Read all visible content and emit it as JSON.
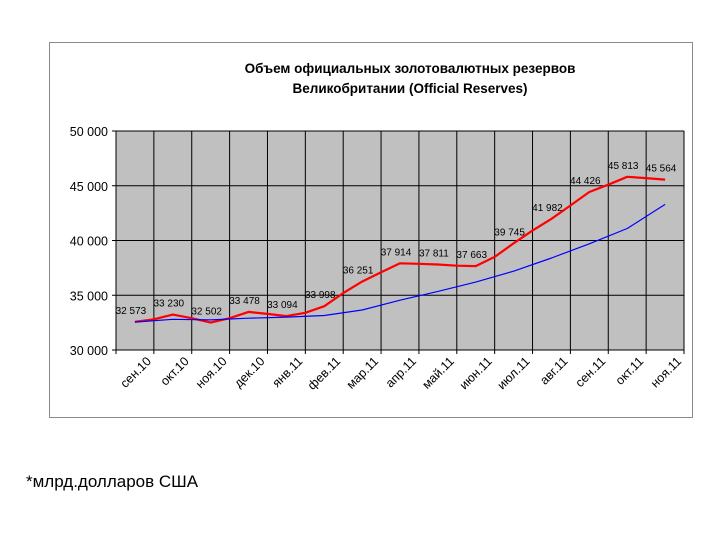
{
  "footnote": "*млрд.долларов США",
  "chart_data": {
    "type": "line",
    "title": [
      "Объем официальных золотовалютных резервов",
      "Великобритании (Official Reserves)"
    ],
    "categories": [
      "сен.10",
      "окт.10",
      "ноя.10",
      "дек.10",
      "янв.11",
      "фев.11",
      "мар.11",
      "апр.11",
      "май.11",
      "июн.11",
      "июл.11",
      "авг.11",
      "сен.11",
      "окт.11",
      "ноя.11"
    ],
    "ylim": [
      30000,
      50000
    ],
    "yticks": [
      "30 000",
      "35 000",
      "40 000",
      "45 000",
      "50 000"
    ],
    "ytick_values": [
      30000,
      35000,
      40000,
      45000,
      50000
    ],
    "grid": true,
    "plot_background": "#c0c0c0",
    "series": [
      {
        "color": "#ff0000",
        "x": [
          0,
          0.5,
          1,
          1.5,
          2,
          2.5,
          3,
          3.5,
          4,
          4.5,
          5,
          5.5,
          6,
          6.5,
          7,
          7.5,
          8,
          8.5,
          9,
          9.5,
          10,
          10.5,
          11,
          11.5,
          12,
          12.5,
          13,
          13.5,
          14
        ],
        "values": [
          32573,
          32800,
          33230,
          32900,
          32502,
          32900,
          33478,
          33300,
          33094,
          33400,
          33998,
          35200,
          36251,
          37100,
          37914,
          37870,
          37811,
          37700,
          37663,
          38500,
          39745,
          40900,
          41982,
          43200,
          44426,
          45100,
          45813,
          45700,
          45564
        ],
        "labels": [
          {
            "x": 0,
            "value": 32573,
            "text": "32 573"
          },
          {
            "x": 1,
            "value": 33230,
            "text": "33 230"
          },
          {
            "x": 2,
            "value": 32502,
            "text": "32 502"
          },
          {
            "x": 3,
            "value": 33478,
            "text": "33 478"
          },
          {
            "x": 4,
            "value": 33094,
            "text": "33 094"
          },
          {
            "x": 5,
            "value": 33998,
            "text": "33 998"
          },
          {
            "x": 6,
            "value": 36251,
            "text": "36 251"
          },
          {
            "x": 7,
            "value": 37914,
            "text": "37 914"
          },
          {
            "x": 8,
            "value": 37811,
            "text": "37 811"
          },
          {
            "x": 9,
            "value": 37663,
            "text": "37 663"
          },
          {
            "x": 10,
            "value": 39745,
            "text": "39 745"
          },
          {
            "x": 11,
            "value": 41982,
            "text": "41 982"
          },
          {
            "x": 12,
            "value": 44426,
            "text": "44 426"
          },
          {
            "x": 13,
            "value": 45813,
            "text": "45 813"
          },
          {
            "x": 14,
            "value": 45564,
            "text": "45 564"
          }
        ]
      },
      {
        "color": "#0000ff",
        "x": [
          0,
          1,
          2,
          3,
          4,
          5,
          6,
          7,
          8,
          9,
          10,
          11,
          12,
          13,
          14
        ],
        "values": [
          32550,
          32800,
          32750,
          32900,
          33000,
          33150,
          33650,
          34550,
          35350,
          36200,
          37200,
          38400,
          39700,
          41100,
          43300
        ]
      }
    ]
  }
}
